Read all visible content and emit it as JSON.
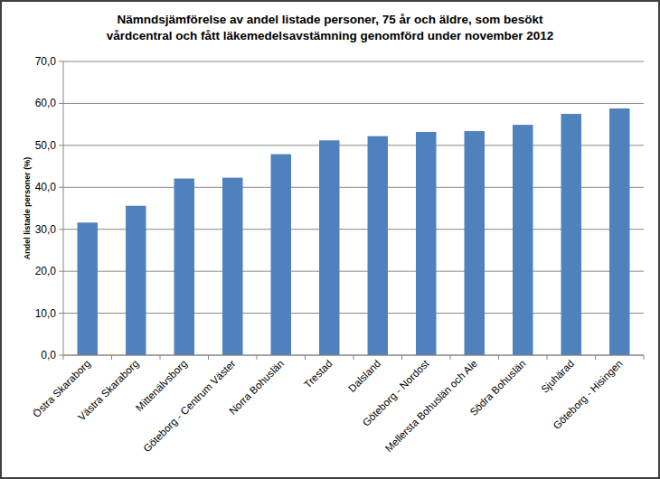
{
  "chart_data": {
    "type": "bar",
    "title": "Nämndsjämförelse av andel listade personer, 75 år och äldre, som besökt vårdcentral och fått läkemedelsavstämning genomförd under november 2012",
    "y_label": "Andel listade personer (%)",
    "categories": [
      "Östra Skaraborg",
      "Västra Skaraborg",
      "Mittenälvsborg",
      "Göteborg - Centrum Väster",
      "Norra Bohuslän",
      "Trestad",
      "Dalsland",
      "Göteborg - Nordost",
      "Mellersta Bohuslän och Ale",
      "Södra Bohuslän",
      "Sjuhärad",
      "Göteborg - Hisingen"
    ],
    "values": [
      31.6,
      35.6,
      42.1,
      42.3,
      47.9,
      51.2,
      52.2,
      53.2,
      53.4,
      54.9,
      57.5,
      58.8
    ],
    "color": "#4f81bd",
    "ylim": [
      0,
      70
    ],
    "yticks": [
      {
        "value": 0,
        "label": "0,0"
      },
      {
        "value": 10,
        "label": "10,0"
      },
      {
        "value": 20,
        "label": "20,0"
      },
      {
        "value": 30,
        "label": "30,0"
      },
      {
        "value": 40,
        "label": "40,0"
      },
      {
        "value": 50,
        "label": "50,0"
      },
      {
        "value": 60,
        "label": "60,0"
      },
      {
        "value": 70,
        "label": "70,0"
      }
    ],
    "grid": true
  }
}
